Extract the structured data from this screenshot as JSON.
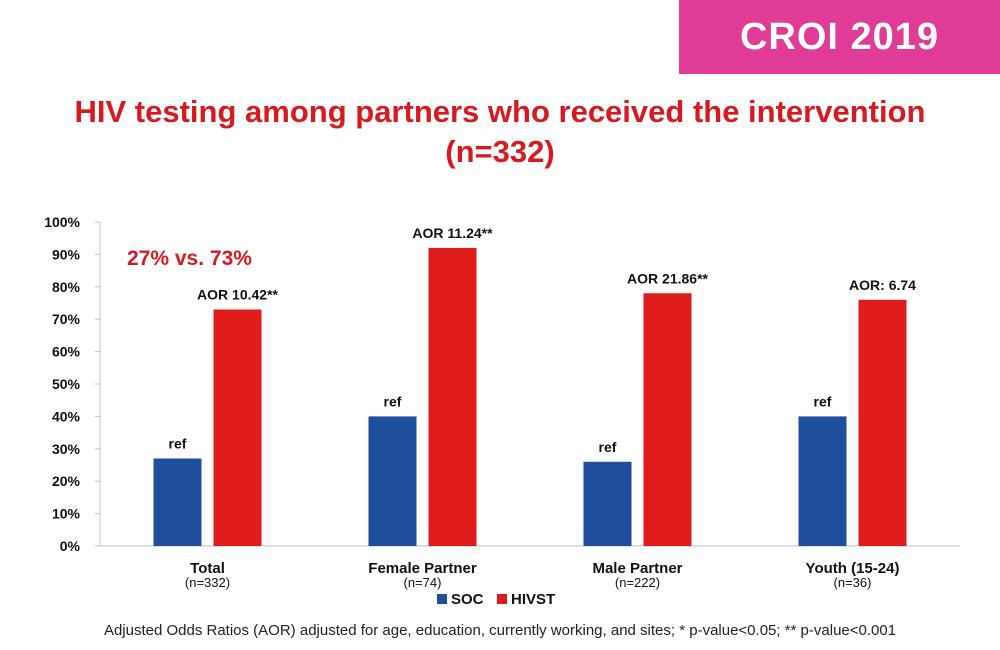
{
  "header": {
    "badge": "CROI 2019",
    "title_line1": "HIV testing among partners who received the intervention",
    "title_line2": "(n=332)"
  },
  "annotation": "27% vs. 73%",
  "footnote": "Adjusted Odds Ratios (AOR) adjusted for age, education, currently working, and sites; * p-value<0.05; ** p-value<0.001",
  "colors": {
    "soc": "#1f4e9c",
    "hivst": "#e01b1b",
    "accent": "#d71920",
    "badge": "#e03b97"
  },
  "chart_data": {
    "type": "bar",
    "categories": [
      "Total",
      "Female Partner",
      "Male Partner",
      "Youth (15-24)"
    ],
    "category_sublabels": [
      "(n=332)",
      "(n=74)",
      "(n=222)",
      "(n=36)"
    ],
    "series": [
      {
        "name": "SOC",
        "values": [
          27,
          40,
          26,
          40
        ],
        "labels": [
          "ref",
          "ref",
          "ref",
          "ref"
        ]
      },
      {
        "name": "HIVST",
        "values": [
          73,
          92,
          78,
          76
        ],
        "labels": [
          "AOR 10.42**",
          "AOR 11.24**",
          "AOR 21.86**",
          "AOR: 6.74"
        ]
      }
    ],
    "yticks": [
      "0%",
      "10%",
      "20%",
      "30%",
      "40%",
      "50%",
      "60%",
      "70%",
      "80%",
      "90%",
      "100%"
    ],
    "ylim": [
      0,
      100
    ],
    "legend_position": "bottom-center",
    "grid": false
  }
}
